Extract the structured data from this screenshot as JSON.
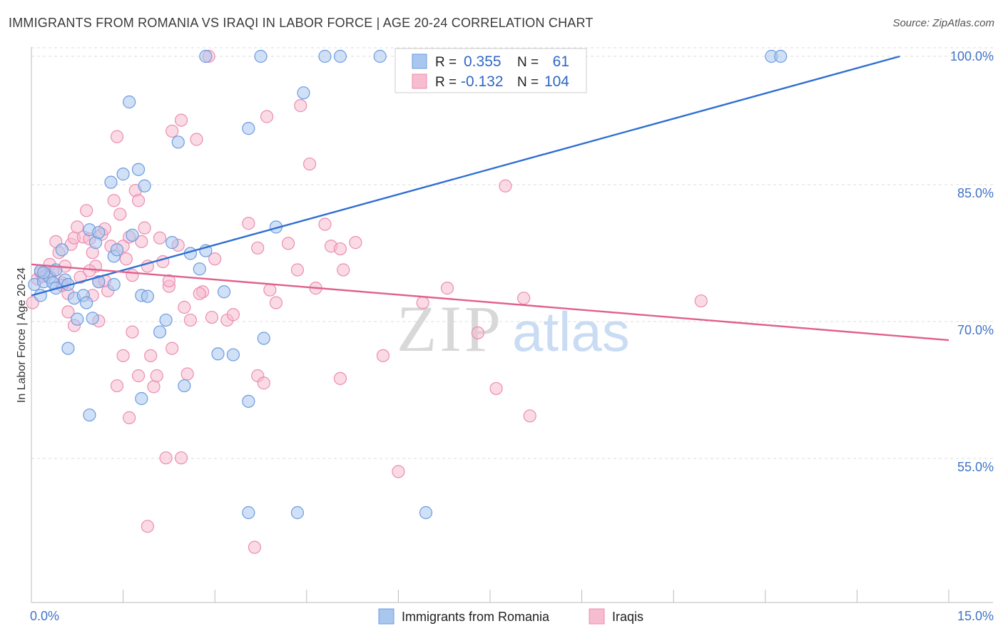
{
  "header": {
    "title": "IMMIGRANTS FROM ROMANIA VS IRAQI IN LABOR FORCE | AGE 20-24 CORRELATION CHART",
    "source": "Source: ZipAtlas.com"
  },
  "watermark": {
    "zip": "ZIP",
    "atlas": "atlas"
  },
  "colors": {
    "blue_fill": "#a9c6ef",
    "blue_stroke": "#6c9be0",
    "blue_line": "#2e6fd1",
    "pink_fill": "#f6bcd0",
    "pink_stroke": "#ec8db0",
    "pink_line": "#e0608d",
    "grid": "#dddddd",
    "axis_text": "#3f73c8"
  },
  "legend": {
    "r_label": "R =",
    "n_label": "N =",
    "entries": [
      {
        "series": "Immigrants from Romania",
        "r": "0.355",
        "n": "61",
        "color": "blue"
      },
      {
        "series": "Iraqis",
        "r": "-0.132",
        "n": "104",
        "color": "pink"
      }
    ]
  },
  "chart_data": {
    "type": "scatter",
    "title": "IMMIGRANTS FROM ROMANIA VS IRAQI IN LABOR FORCE | AGE 20-24 CORRELATION CHART",
    "xlabel": "",
    "ylabel": "In Labor Force | Age 20-24",
    "xlim": [
      0,
      15
    ],
    "ylim": [
      40,
      101.5
    ],
    "x_tick_labels": [
      "0.0%",
      "15.0%"
    ],
    "y_ticks": [
      55,
      70,
      85,
      100
    ],
    "y_tick_labels": [
      "55.0%",
      "70.0%",
      "85.0%",
      "100.0%"
    ],
    "grid": true,
    "series": [
      {
        "name": "Immigrants from Romania",
        "color": "blue",
        "trend": {
          "x": [
            0,
            14.2
          ],
          "y": [
            73.8,
            100
          ]
        },
        "points": [
          [
            0.05,
            75.0
          ],
          [
            0.15,
            73.8
          ],
          [
            0.15,
            76.5
          ],
          [
            0.2,
            75.3
          ],
          [
            0.3,
            75.8
          ],
          [
            0.35,
            75.2
          ],
          [
            0.4,
            76.6
          ],
          [
            0.5,
            78.8
          ],
          [
            0.55,
            75.5
          ],
          [
            0.6,
            75.0
          ],
          [
            0.7,
            73.5
          ],
          [
            0.75,
            71.2
          ],
          [
            0.85,
            73.8
          ],
          [
            0.95,
            81.0
          ],
          [
            1.0,
            71.3
          ],
          [
            1.05,
            79.6
          ],
          [
            1.1,
            80.7
          ],
          [
            1.3,
            86.2
          ],
          [
            1.35,
            78.1
          ],
          [
            1.4,
            78.8
          ],
          [
            1.5,
            87.1
          ],
          [
            1.6,
            95.0
          ],
          [
            1.65,
            80.4
          ],
          [
            1.75,
            87.6
          ],
          [
            1.8,
            73.8
          ],
          [
            1.85,
            85.8
          ],
          [
            1.9,
            73.7
          ],
          [
            2.1,
            69.8
          ],
          [
            2.2,
            71.1
          ],
          [
            2.3,
            79.6
          ],
          [
            2.4,
            90.6
          ],
          [
            2.5,
            63.9
          ],
          [
            2.6,
            78.4
          ],
          [
            2.75,
            76.7
          ],
          [
            2.85,
            78.7
          ],
          [
            3.05,
            67.4
          ],
          [
            3.15,
            74.2
          ],
          [
            3.3,
            67.3
          ],
          [
            3.55,
            92.1
          ],
          [
            3.75,
            100
          ],
          [
            2.85,
            100
          ],
          [
            3.55,
            62.2
          ],
          [
            3.8,
            69.1
          ],
          [
            4.0,
            81.3
          ],
          [
            4.45,
            96.0
          ],
          [
            4.8,
            100
          ],
          [
            5.05,
            100
          ],
          [
            5.7,
            100
          ],
          [
            3.55,
            50
          ],
          [
            4.35,
            50
          ],
          [
            6.45,
            50
          ],
          [
            12.1,
            100
          ],
          [
            12.25,
            100
          ],
          [
            0.6,
            68.0
          ],
          [
            0.9,
            73.0
          ],
          [
            1.35,
            75.0
          ],
          [
            0.4,
            74.6
          ],
          [
            1.8,
            62.5
          ],
          [
            0.2,
            76.3
          ],
          [
            0.95,
            60.7
          ],
          [
            1.1,
            75.3
          ]
        ]
      },
      {
        "name": "Iraqis",
        "color": "pink",
        "trend": {
          "x": [
            0,
            15
          ],
          "y": [
            77.2,
            68.9
          ]
        },
        "points": [
          [
            0.02,
            73.0
          ],
          [
            0.1,
            75.6
          ],
          [
            0.15,
            76.3
          ],
          [
            0.2,
            75.9
          ],
          [
            0.3,
            77.2
          ],
          [
            0.35,
            76.4
          ],
          [
            0.4,
            79.7
          ],
          [
            0.45,
            78.5
          ],
          [
            0.5,
            75.2
          ],
          [
            0.55,
            77.0
          ],
          [
            0.6,
            74.0
          ],
          [
            0.65,
            79.4
          ],
          [
            0.7,
            80.1
          ],
          [
            0.75,
            81.3
          ],
          [
            0.8,
            75.8
          ],
          [
            0.85,
            80.2
          ],
          [
            0.9,
            83.1
          ],
          [
            0.95,
            80.0
          ],
          [
            1.0,
            78.5
          ],
          [
            1.05,
            77.0
          ],
          [
            1.1,
            75.3
          ],
          [
            1.15,
            80.5
          ],
          [
            1.2,
            81.1
          ],
          [
            1.25,
            74.3
          ],
          [
            1.3,
            79.2
          ],
          [
            1.35,
            84.2
          ],
          [
            1.4,
            91.2
          ],
          [
            1.45,
            82.7
          ],
          [
            1.5,
            79.2
          ],
          [
            1.55,
            77.8
          ],
          [
            1.6,
            80.2
          ],
          [
            1.65,
            69.8
          ],
          [
            1.7,
            85.3
          ],
          [
            1.75,
            84.2
          ],
          [
            1.8,
            79.7
          ],
          [
            1.85,
            81.2
          ],
          [
            1.9,
            77.0
          ],
          [
            1.95,
            67.2
          ],
          [
            2.0,
            63.8
          ],
          [
            2.05,
            65.0
          ],
          [
            2.1,
            80.1
          ],
          [
            2.15,
            77.5
          ],
          [
            2.2,
            56.0
          ],
          [
            2.25,
            74.8
          ],
          [
            2.3,
            91.8
          ],
          [
            2.4,
            79.3
          ],
          [
            2.45,
            93.0
          ],
          [
            2.5,
            72.5
          ],
          [
            2.55,
            65.2
          ],
          [
            2.6,
            71.1
          ],
          [
            2.7,
            90.9
          ],
          [
            2.8,
            74.2
          ],
          [
            2.95,
            71.4
          ],
          [
            3.2,
            71.1
          ],
          [
            3.3,
            71.7
          ],
          [
            3.55,
            81.7
          ],
          [
            3.7,
            79.0
          ],
          [
            3.9,
            74.4
          ],
          [
            4.0,
            73.0
          ],
          [
            3.85,
            93.4
          ],
          [
            3.7,
            65.0
          ],
          [
            3.8,
            64.2
          ],
          [
            4.55,
            88.2
          ],
          [
            4.4,
            94.6
          ],
          [
            4.35,
            76.6
          ],
          [
            4.2,
            79.5
          ],
          [
            4.65,
            74.6
          ],
          [
            4.8,
            81.6
          ],
          [
            4.9,
            79.2
          ],
          [
            5.05,
            64.7
          ],
          [
            5.05,
            78.9
          ],
          [
            5.3,
            79.6
          ],
          [
            5.1,
            76.6
          ],
          [
            5.75,
            67.2
          ],
          [
            6.0,
            54.5
          ],
          [
            6.4,
            73.0
          ],
          [
            6.8,
            74.6
          ],
          [
            7.3,
            69.7
          ],
          [
            7.6,
            63.6
          ],
          [
            7.75,
            85.8
          ],
          [
            8.05,
            73.5
          ],
          [
            8.15,
            60.6
          ],
          [
            10.95,
            73.2
          ],
          [
            1.6,
            60.4
          ],
          [
            1.9,
            48.5
          ],
          [
            1.4,
            63.9
          ],
          [
            2.45,
            56.0
          ],
          [
            2.9,
            100
          ],
          [
            3.65,
            46.2
          ],
          [
            2.75,
            74.0
          ],
          [
            1.75,
            65.0
          ],
          [
            1.2,
            75.4
          ],
          [
            0.25,
            76.0
          ],
          [
            0.5,
            74.9
          ],
          [
            1.0,
            73.8
          ],
          [
            1.5,
            67.2
          ],
          [
            1.1,
            71.0
          ],
          [
            0.6,
            72.0
          ],
          [
            0.7,
            70.5
          ],
          [
            2.3,
            68.0
          ],
          [
            3.0,
            77.8
          ],
          [
            2.25,
            75.4
          ],
          [
            0.95,
            76.5
          ],
          [
            1.65,
            76.0
          ]
        ]
      }
    ]
  }
}
